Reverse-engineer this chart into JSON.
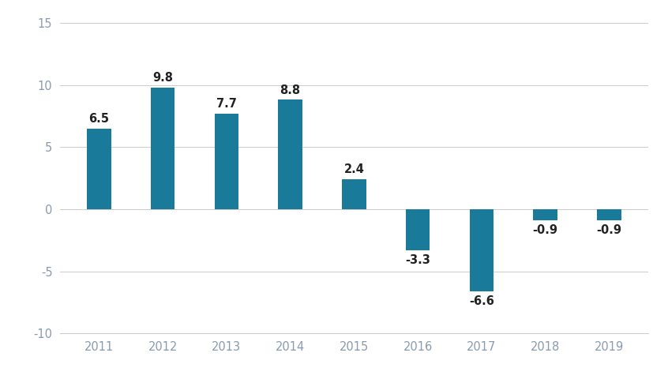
{
  "categories": [
    "2011",
    "2012",
    "2013",
    "2014",
    "2015",
    "2016",
    "2017",
    "2018",
    "2019"
  ],
  "values": [
    6.5,
    9.8,
    7.7,
    8.8,
    2.4,
    -3.3,
    -6.6,
    -0.9,
    -0.9
  ],
  "bar_color": "#1a7a9a",
  "ylim": [
    -10,
    15
  ],
  "yticks": [
    -10,
    -5,
    0,
    5,
    10,
    15
  ],
  "background_color": "#ffffff",
  "grid_color": "#cccccc",
  "label_fontsize": 10.5,
  "tick_fontsize": 10.5,
  "tick_color": "#8a9bb0",
  "label_color": "#222222",
  "bar_width": 0.38
}
